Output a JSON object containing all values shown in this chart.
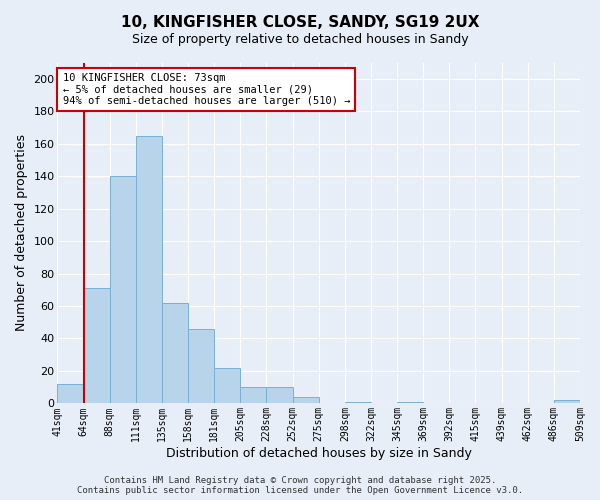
{
  "title": "10, KINGFISHER CLOSE, SANDY, SG19 2UX",
  "subtitle": "Size of property relative to detached houses in Sandy",
  "xlabel": "Distribution of detached houses by size in Sandy",
  "ylabel": "Number of detached properties",
  "bar_values": [
    12,
    71,
    140,
    165,
    62,
    46,
    22,
    10,
    10,
    4,
    0,
    1,
    0,
    1,
    0,
    0,
    0,
    0,
    0,
    2
  ],
  "bin_labels": [
    "41sqm",
    "64sqm",
    "88sqm",
    "111sqm",
    "135sqm",
    "158sqm",
    "181sqm",
    "205sqm",
    "228sqm",
    "252sqm",
    "275sqm",
    "298sqm",
    "322sqm",
    "345sqm",
    "369sqm",
    "392sqm",
    "415sqm",
    "439sqm",
    "462sqm",
    "486sqm",
    "509sqm"
  ],
  "bar_color": "#b8d4ea",
  "bar_edge_color": "#7ab0d4",
  "vline_color": "#cc0000",
  "vline_x": 1,
  "ylim": [
    0,
    210
  ],
  "yticks": [
    0,
    20,
    40,
    60,
    80,
    100,
    120,
    140,
    160,
    180,
    200
  ],
  "annotation_title": "10 KINGFISHER CLOSE: 73sqm",
  "annotation_line1": "← 5% of detached houses are smaller (29)",
  "annotation_line2": "94% of semi-detached houses are larger (510) →",
  "annotation_box_facecolor": "#ffffff",
  "annotation_box_edgecolor": "#cc0000",
  "footer1": "Contains HM Land Registry data © Crown copyright and database right 2025.",
  "footer2": "Contains public sector information licensed under the Open Government Licence v3.0.",
  "background_color": "#e8eef8",
  "grid_color": "#ffffff",
  "figsize": [
    6.0,
    5.0
  ],
  "dpi": 100
}
